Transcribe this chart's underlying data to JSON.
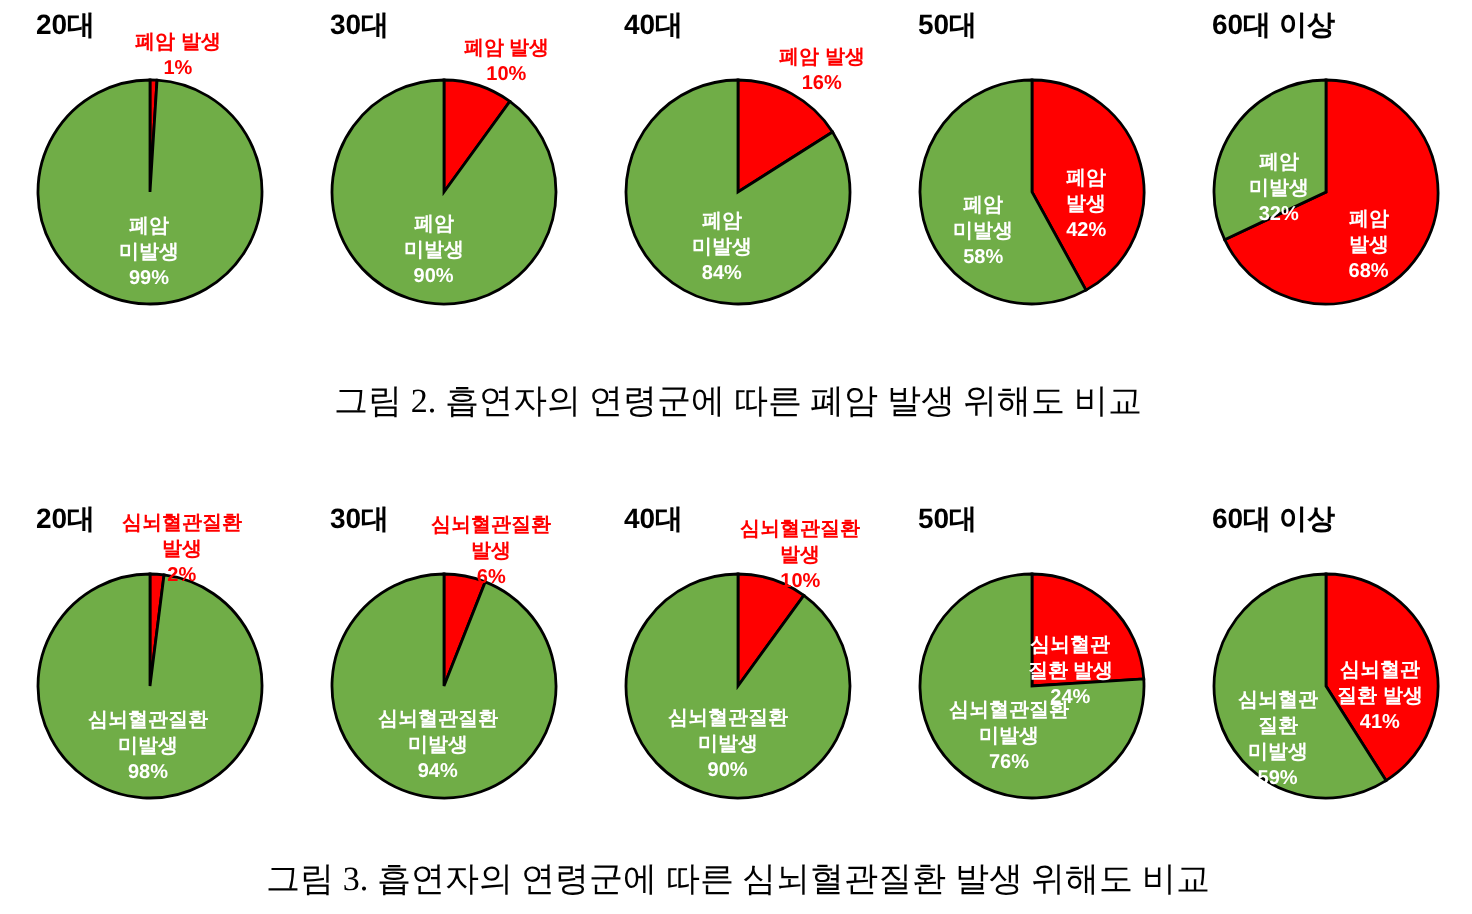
{
  "chart_data": [
    {
      "type": "pie",
      "title": "20대",
      "categories": [
        "폐암 발생",
        "폐암 미발생"
      ],
      "values": [
        1,
        99
      ],
      "colors": [
        "#ff0000",
        "#70ad47"
      ],
      "value_labels": [
        "1%",
        "99%"
      ]
    },
    {
      "type": "pie",
      "title": "30대",
      "categories": [
        "폐암 발생",
        "폐암 미발생"
      ],
      "values": [
        10,
        90
      ],
      "colors": [
        "#ff0000",
        "#70ad47"
      ],
      "value_labels": [
        "10%",
        "90%"
      ]
    },
    {
      "type": "pie",
      "title": "40대",
      "categories": [
        "폐암 발생",
        "폐암 미발생"
      ],
      "values": [
        16,
        84
      ],
      "colors": [
        "#ff0000",
        "#70ad47"
      ],
      "value_labels": [
        "16%",
        "84%"
      ],
      "annotations": [
        "그림 2. 흡연자의 연령군에 따른 폐암 발생 위해도 비교"
      ]
    },
    {
      "type": "pie",
      "title": "50대",
      "categories": [
        "폐암 발생",
        "폐암 미발생"
      ],
      "values": [
        42,
        58
      ],
      "colors": [
        "#ff0000",
        "#70ad47"
      ],
      "value_labels": [
        "42%",
        "58%"
      ]
    },
    {
      "type": "pie",
      "title": "60대 이상",
      "categories": [
        "폐암 발생",
        "폐암 미발생"
      ],
      "values": [
        68,
        32
      ],
      "colors": [
        "#ff0000",
        "#70ad47"
      ],
      "value_labels": [
        "68%",
        "32%"
      ]
    },
    {
      "type": "pie",
      "title": "20대",
      "categories": [
        "심뇌혈관질환 발생",
        "심뇌혈관질환 미발생"
      ],
      "values": [
        2,
        98
      ],
      "colors": [
        "#ff0000",
        "#70ad47"
      ],
      "value_labels": [
        "2%",
        "98%"
      ]
    },
    {
      "type": "pie",
      "title": "30대",
      "categories": [
        "심뇌혈관질환 발생",
        "심뇌혈관질환 미발생"
      ],
      "values": [
        6,
        94
      ],
      "colors": [
        "#ff0000",
        "#70ad47"
      ],
      "value_labels": [
        "6%",
        "94%"
      ]
    },
    {
      "type": "pie",
      "title": "40대",
      "categories": [
        "심뇌혈관질환 발생",
        "심뇌혈관질환 미발생"
      ],
      "values": [
        10,
        90
      ],
      "colors": [
        "#ff0000",
        "#70ad47"
      ],
      "value_labels": [
        "10%",
        "90%"
      ],
      "annotations": [
        "그림 3. 흡연자의 연령군에 따른 심뇌혈관질환 발생 위해도 비교"
      ]
    },
    {
      "type": "pie",
      "title": "50대",
      "categories": [
        "심뇌혈관질환 발생",
        "심뇌혈관질환 미발생"
      ],
      "values": [
        24,
        76
      ],
      "colors": [
        "#ff0000",
        "#70ad47"
      ],
      "value_labels": [
        "24%",
        "76%"
      ]
    },
    {
      "type": "pie",
      "title": "60대 이상",
      "categories": [
        "심뇌혈관질환 발생",
        "심뇌혈관질환 미발생"
      ],
      "values": [
        41,
        59
      ],
      "colors": [
        "#ff0000",
        "#70ad47"
      ],
      "value_labels": [
        "41%",
        "59%"
      ]
    }
  ]
}
